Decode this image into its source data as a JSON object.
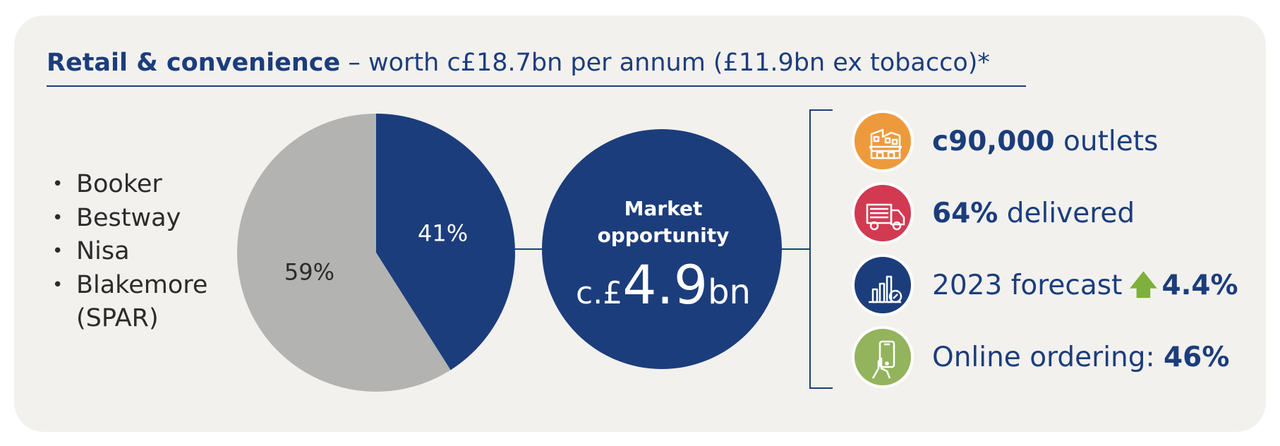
{
  "title": {
    "bold": "Retail & convenience",
    "rest": " – worth c£18.7bn per annum (£11.9bn ex tobacco)*"
  },
  "wholesalers": [
    "Booker",
    "Bestway",
    "Nisa",
    "Blakemore (SPAR)"
  ],
  "chart_data": {
    "type": "pie",
    "slices": [
      {
        "value": 41,
        "label": "41%",
        "color": "#1c3d7c"
      },
      {
        "value": 59,
        "label": "59%",
        "color": "#b3b3b1"
      }
    ]
  },
  "market": {
    "line1": "Market",
    "line2": "opportunity",
    "prefix": "c.£",
    "value": "4.9",
    "unit": "bn"
  },
  "stats": {
    "outlets": {
      "bold": "c90,000",
      "rest": " outlets"
    },
    "delivered": {
      "bold": "64%",
      "rest": " delivered"
    },
    "forecast": {
      "text": "2023 forecast",
      "bold": "4.4%"
    },
    "online": {
      "text": "Online ordering: ",
      "bold": "46%"
    }
  },
  "colors": {
    "navy": "#1c3d7c",
    "orange": "#ed9a3c",
    "red": "#d23a52",
    "green": "#93b45c",
    "grey": "#b3b3b1"
  },
  "icons": [
    "shop-icon",
    "delivery-truck-icon",
    "growth-chart-icon",
    "mobile-phone-icon"
  ]
}
